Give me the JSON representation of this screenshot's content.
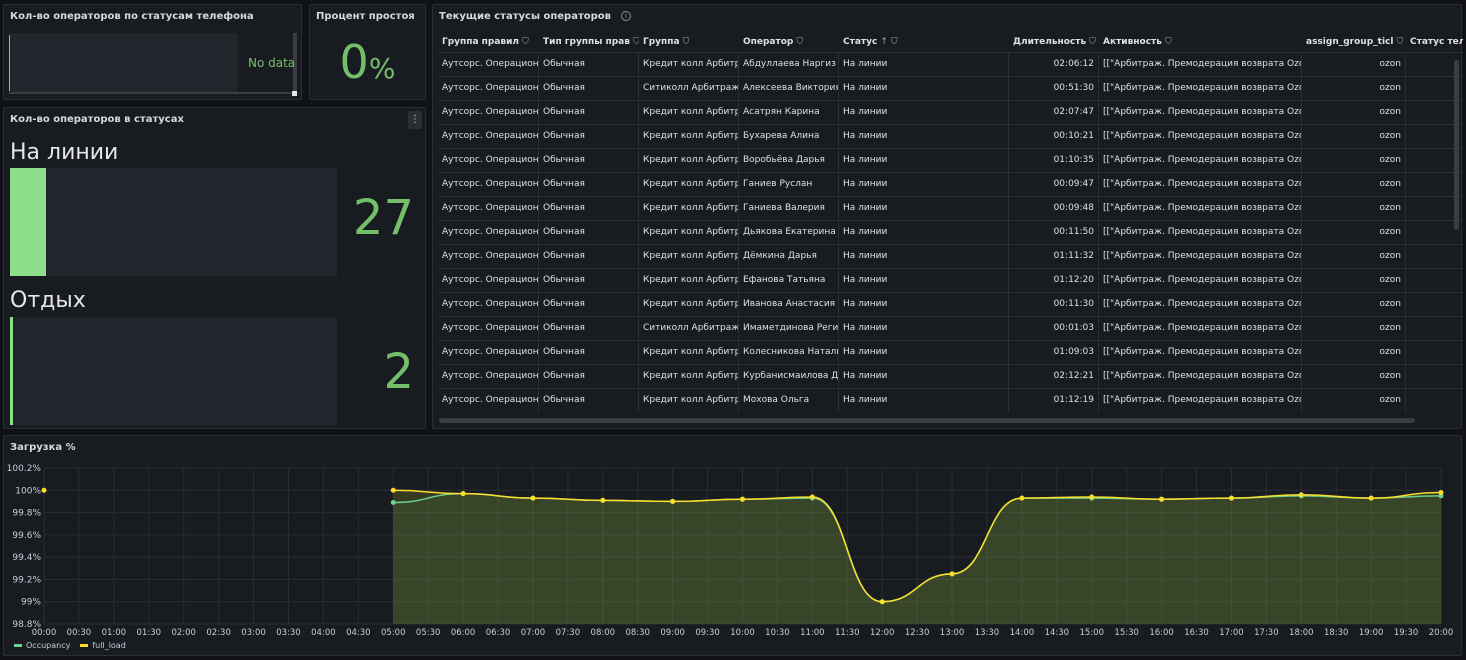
{
  "panels": {
    "phone_status": {
      "title": "Кол-во операторов по статусам телефона",
      "no_data": "No data"
    },
    "idle_percent": {
      "title": "Процент простоя",
      "value": "0",
      "unit": "%"
    },
    "status_counts": {
      "title": "Кол-во операторов в статусах",
      "menu": "⋮",
      "items": [
        {
          "label": "На линии",
          "value": "27",
          "fill": 0.11
        },
        {
          "label": "Отдых",
          "value": "2",
          "fill": 0.01
        }
      ]
    },
    "operators_table": {
      "title": "Текущие статусы операторов",
      "info": "i",
      "sort_glyph": "↑",
      "filter_glyph": "⛉",
      "columns": [
        "Группа правил",
        "Тип группы прав",
        "Группа",
        "Оператор",
        "Статус",
        "Длительность",
        "Активность",
        "assign_group_ticl",
        "Статус теле"
      ],
      "rows": [
        [
          "Аутсорс. Операцион",
          "Обычная",
          "Кредит колл Арбитр",
          "Абдуллаева Наргиз",
          "На линии",
          "02:06:12",
          "[[\"Арбитраж. Премодерация возврата Ozon",
          "ozon"
        ],
        [
          "Аутсорс. Операцион",
          "Обычная",
          "Ситиколл Арбитраж",
          "Алексеева Виктория",
          "На линии",
          "00:51:30",
          "[[\"Арбитраж. Премодерация возврата Ozon",
          "ozon"
        ],
        [
          "Аутсорс. Операцион",
          "Обычная",
          "Кредит колл Арбитр",
          "Асатрян Карина",
          "На линии",
          "02:07:47",
          "[[\"Арбитраж. Премодерация возврата Ozon",
          "ozon"
        ],
        [
          "Аутсорс. Операцион",
          "Обычная",
          "Кредит колл Арбитр",
          "Бухарева Алина",
          "На линии",
          "00:10:21",
          "[[\"Арбитраж. Премодерация возврата Ozon",
          "ozon"
        ],
        [
          "Аутсорс. Операцион",
          "Обычная",
          "Кредит колл Арбитр",
          "Воробьёва Дарья",
          "На линии",
          "01:10:35",
          "[[\"Арбитраж. Премодерация возврата Ozon",
          "ozon"
        ],
        [
          "Аутсорс. Операцион",
          "Обычная",
          "Кредит колл Арбитр",
          "Ганиев Руслан",
          "На линии",
          "00:09:47",
          "[[\"Арбитраж. Премодерация возврата Ozon",
          "ozon"
        ],
        [
          "Аутсорс. Операцион",
          "Обычная",
          "Кредит колл Арбитр",
          "Ганиева Валерия",
          "На линии",
          "00:09:48",
          "[[\"Арбитраж. Премодерация возврата Ozon",
          "ozon"
        ],
        [
          "Аутсорс. Операцион",
          "Обычная",
          "Кредит колл Арбитр",
          "Дьякова Екатерина",
          "На линии",
          "00:11:50",
          "[[\"Арбитраж. Премодерация возврата Ozon",
          "ozon"
        ],
        [
          "Аутсорс. Операцион",
          "Обычная",
          "Кредит колл Арбитр",
          "Дёмкина Дарья",
          "На линии",
          "01:11:32",
          "[[\"Арбитраж. Премодерация возврата Ozon",
          "ozon"
        ],
        [
          "Аутсорс. Операцион",
          "Обычная",
          "Кредит колл Арбитр",
          "Ефанова Татьяна",
          "На линии",
          "01:12:20",
          "[[\"Арбитраж. Премодерация возврата Ozon",
          "ozon"
        ],
        [
          "Аутсорс. Операцион",
          "Обычная",
          "Кредит колл Арбитр",
          "Иванова Анастасия",
          "На линии",
          "00:11:30",
          "[[\"Арбитраж. Премодерация возврата Ozon",
          "ozon"
        ],
        [
          "Аутсорс. Операцион",
          "Обычная",
          "Ситиколл Арбитраж",
          "Имаметдинова Регин",
          "На линии",
          "00:01:03",
          "[[\"Арбитраж. Премодерация возврата Ozon",
          "ozon"
        ],
        [
          "Аутсорс. Операцион",
          "Обычная",
          "Кредит колл Арбитр",
          "Колесникова Наталь",
          "На линии",
          "01:09:03",
          "[[\"Арбитраж. Премодерация возврата Ozon",
          "ozon"
        ],
        [
          "Аутсорс. Операцион",
          "Обычная",
          "Кредит колл Арбитр",
          "Курбанисмаилова Д",
          "На линии",
          "02:12:21",
          "[[\"Арбитраж. Премодерация возврата Ozon",
          "ozon"
        ],
        [
          "Аутсорс. Операцион",
          "Обычная",
          "Кредит колл Арбитр",
          "Мохова Ольга",
          "На линии",
          "01:12:19",
          "[[\"Арбитраж. Премодерация возврата Ozon",
          "ozon"
        ]
      ]
    },
    "load_chart": {
      "title": "Загрузка %"
    }
  },
  "colors": {
    "green": "#73bf69",
    "yellow": "#fade2a",
    "occupancy": "#6ccf8e"
  },
  "chart_data": {
    "type": "line",
    "title": "Загрузка %",
    "y_tick_labels": [
      "100.2%",
      "100%",
      "99.8%",
      "99.6%",
      "99.4%",
      "99.2%",
      "99%",
      "98.8%"
    ],
    "ylim": [
      98.8,
      100.2
    ],
    "x_tick_labels": [
      "00:00",
      "00:30",
      "01:00",
      "01:30",
      "02:00",
      "02:30",
      "03:00",
      "03:30",
      "04:00",
      "04:30",
      "05:00",
      "05:30",
      "06:00",
      "06:30",
      "07:00",
      "07:30",
      "08:00",
      "08:30",
      "09:00",
      "09:30",
      "10:00",
      "10:30",
      "11:00",
      "11:30",
      "12:00",
      "12:30",
      "13:00",
      "13:30",
      "14:00",
      "14:30",
      "15:00",
      "15:30",
      "16:00",
      "16:30",
      "17:00",
      "17:30",
      "18:00",
      "18:30",
      "19:00",
      "19:30",
      "20:00"
    ],
    "legend": "bottom-left",
    "series": [
      {
        "name": "Occupancy",
        "color": "#6ccf8e",
        "x": [
          5,
          6,
          7,
          8,
          9,
          10,
          11,
          12,
          13,
          14,
          15,
          16,
          17,
          18,
          19,
          20
        ],
        "y": [
          99.89,
          99.97,
          99.93,
          99.91,
          99.9,
          99.92,
          99.93,
          99.0,
          99.25,
          99.93,
          99.93,
          99.92,
          99.93,
          99.95,
          99.93,
          99.95
        ]
      },
      {
        "name": "full_load",
        "color": "#fade2a",
        "x": [
          0,
          5,
          6,
          7,
          8,
          9,
          10,
          11,
          12,
          13,
          14,
          15,
          16,
          17,
          18,
          19,
          20
        ],
        "y": [
          100.0,
          100.0,
          99.97,
          99.93,
          99.91,
          99.9,
          99.92,
          99.94,
          99.0,
          99.25,
          99.93,
          99.94,
          99.92,
          99.93,
          99.96,
          99.93,
          99.98
        ]
      }
    ]
  }
}
